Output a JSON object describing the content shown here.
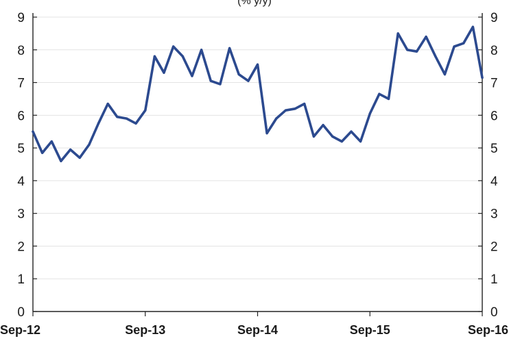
{
  "chart_data": {
    "type": "line",
    "title": "(% y/y)",
    "xlabel": "",
    "ylabel": "",
    "ylim": [
      0,
      9
    ],
    "yticks": [
      0,
      1,
      2,
      3,
      4,
      5,
      6,
      7,
      8,
      9
    ],
    "right_axis": true,
    "grid": true,
    "legend": "none",
    "x_tick_labels": [
      "Sep-12",
      "Sep-13",
      "Sep-14",
      "Sep-15",
      "Sep-16"
    ],
    "x_tick_index": [
      0,
      12,
      24,
      36,
      48
    ],
    "line_color": "#2c4a8f",
    "series": [
      {
        "x": [
          "Sep-12",
          "Oct-12",
          "Nov-12",
          "Dec-12",
          "Jan-13",
          "Feb-13",
          "Mar-13",
          "Apr-13",
          "May-13",
          "Jun-13",
          "Jul-13",
          "Aug-13",
          "Sep-13",
          "Oct-13",
          "Nov-13",
          "Dec-13",
          "Jan-14",
          "Feb-14",
          "Mar-14",
          "Apr-14",
          "May-14",
          "Jun-14",
          "Jul-14",
          "Aug-14",
          "Sep-14",
          "Oct-14",
          "Nov-14",
          "Dec-14",
          "Jan-15",
          "Feb-15",
          "Mar-15",
          "Apr-15",
          "May-15",
          "Jun-15",
          "Jul-15",
          "Aug-15",
          "Sep-15",
          "Oct-15",
          "Nov-15",
          "Dec-15",
          "Jan-16",
          "Feb-16",
          "Mar-16",
          "Apr-16",
          "May-16",
          "Jun-16",
          "Jul-16",
          "Aug-16",
          "Sep-16"
        ],
        "values": [
          5.5,
          4.85,
          5.2,
          4.6,
          4.95,
          4.7,
          5.1,
          5.75,
          6.35,
          5.95,
          5.9,
          5.75,
          6.15,
          7.8,
          7.3,
          8.1,
          7.8,
          7.2,
          8.0,
          7.05,
          6.95,
          8.05,
          7.25,
          7.05,
          7.55,
          5.45,
          5.9,
          6.15,
          6.2,
          6.35,
          5.35,
          5.7,
          5.35,
          5.2,
          5.5,
          5.2,
          6.05,
          6.65,
          6.5,
          8.5,
          8.0,
          7.95,
          8.4,
          7.8,
          7.25,
          8.1,
          8.2,
          8.7,
          7.15
        ]
      }
    ]
  }
}
